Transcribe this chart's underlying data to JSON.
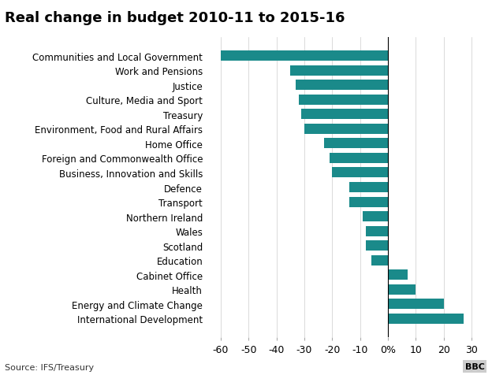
{
  "title": "Real change in budget 2010-11 to 2015-16",
  "departments": [
    "Communities and Local Government",
    "Work and Pensions",
    "Justice",
    "Culture, Media and Sport",
    "Treasury",
    "Environment, Food and Rural Affairs",
    "Home Office",
    "Foreign and Commonwealth Office",
    "Business, Innovation and Skills",
    "Defence",
    "Transport",
    "Northern Ireland",
    "Wales",
    "Scotland",
    "Education",
    "Cabinet Office",
    "Health",
    "Energy and Climate Change",
    "International Development"
  ],
  "values": [
    -60,
    -35,
    -33,
    -32,
    -31,
    -30,
    -23,
    -21,
    -20,
    -14,
    -14,
    -9,
    -8,
    -8,
    -6,
    7,
    10,
    20,
    27
  ],
  "bar_color": "#1a8a8a",
  "background_color": "#ffffff",
  "xlim": [
    -65,
    32
  ],
  "xticks": [
    -60,
    -50,
    -40,
    -30,
    -20,
    -10,
    0,
    10,
    20,
    30
  ],
  "xticklabels": [
    "-60",
    "-50",
    "-40",
    "-30",
    "-20",
    "-10",
    "0%",
    "10",
    "20",
    "30"
  ],
  "source_text": "Source: IFS/Treasury",
  "bbc_text": "BBC",
  "title_fontsize": 13,
  "label_fontsize": 8.5,
  "tick_fontsize": 9
}
